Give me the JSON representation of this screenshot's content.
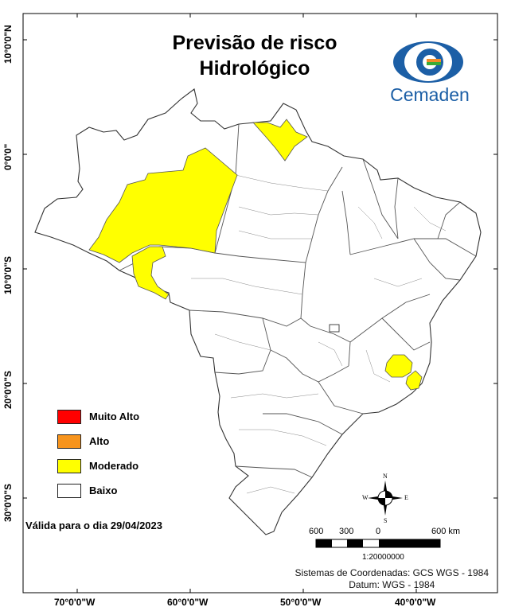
{
  "title": {
    "line1": "Previsão de risco",
    "line2": "Hidrológico"
  },
  "logo": {
    "text": "Cemaden",
    "colors": {
      "blue": "#1c5fa6",
      "orange": "#f28c28",
      "green": "#3aaa35"
    }
  },
  "legend": [
    {
      "label": "Muito Alto",
      "color": "#ff0000"
    },
    {
      "label": "Alto",
      "color": "#f7941d"
    },
    {
      "label": "Moderado",
      "color": "#ffff00"
    },
    {
      "label": "Baixo",
      "color": "#ffffff"
    }
  ],
  "valid_date_text": "Válida para o dia 29/04/2023",
  "scale_bar": {
    "labels": [
      "600",
      "300",
      "0",
      "600 km"
    ],
    "ratio": "1:20000000"
  },
  "crs": {
    "line1": "Sistemas de Coordenadas: GCS WGS - 1984",
    "line2": "Datum: WGS - 1984"
  },
  "graticule": {
    "longitudes": [
      "70°0'0\"W",
      "60°0'0\"W",
      "50°0'0\"W",
      "40°0'0\"W"
    ],
    "latitudes": [
      "10°0'0\"N",
      "0°0'0\"",
      "10°0'0\"S",
      "20°0'0\"S",
      "30°0'0\"S"
    ]
  },
  "compass": {
    "n": "N",
    "s": "S",
    "e": "E",
    "w": "W"
  },
  "risk_areas": [
    {
      "region": "Amazonas / Acre",
      "level": "Moderado"
    },
    {
      "region": "Amapá",
      "level": "Moderado"
    },
    {
      "region": "Minas Gerais / Espírito Santo",
      "level": "Moderado"
    }
  ]
}
